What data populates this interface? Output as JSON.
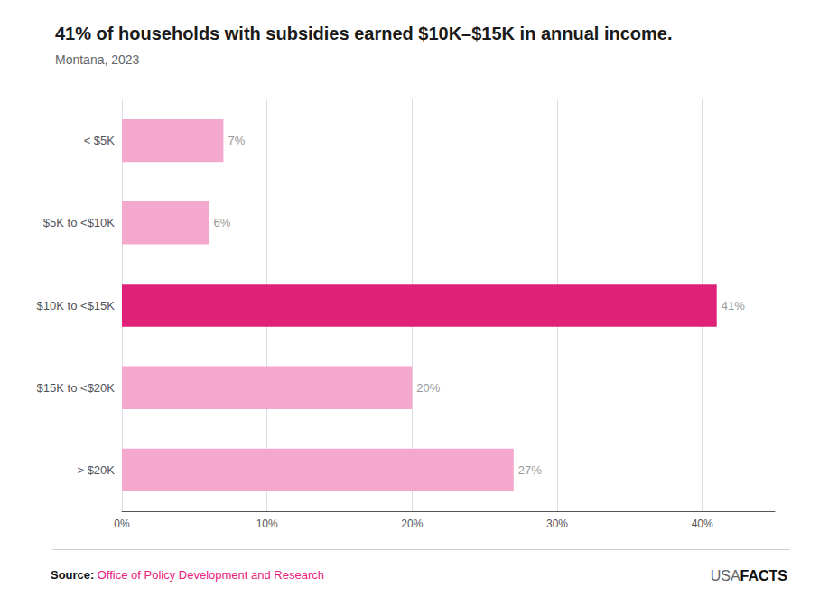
{
  "chart_data": {
    "type": "bar",
    "orientation": "horizontal",
    "title": "41% of households with subsidies earned $10K–$15K in annual income.",
    "subtitle": "Montana, 2023",
    "categories": [
      "< $5K",
      "$5K to <$10K",
      "$10K to <$15K",
      "$15K to <$20K",
      "> $20K"
    ],
    "values": [
      7,
      6,
      41,
      20,
      27
    ],
    "value_labels": [
      "7%",
      "6%",
      "41%",
      "20%",
      "27%"
    ],
    "colors": [
      "#f5a8ce",
      "#f5a8ce",
      "#e0217a",
      "#f5a8ce",
      "#f5a8ce"
    ],
    "xlim": [
      0,
      45
    ],
    "xticks": [
      {
        "value": 0,
        "label": "0%"
      },
      {
        "value": 10,
        "label": "10%"
      },
      {
        "value": 20,
        "label": "20%"
      },
      {
        "value": 30,
        "label": "30%"
      },
      {
        "value": 40,
        "label": "40%"
      }
    ],
    "grid": true,
    "data_labels": true,
    "annotations": [
      "Source:",
      "Office of Policy Development and Research",
      "USA",
      "FACTS"
    ]
  }
}
